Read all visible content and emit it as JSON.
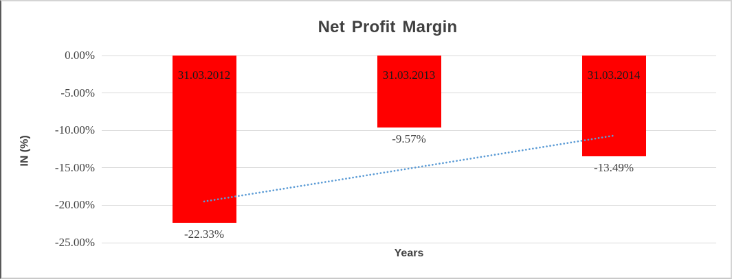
{
  "chart_data": {
    "type": "bar",
    "title": "Net Profit Margin",
    "xlabel": "Years",
    "ylabel": "IN (%)",
    "categories": [
      "31.03.2012",
      "31.03.2013",
      "31.03.2014"
    ],
    "values": [
      -22.33,
      -9.57,
      -13.49
    ],
    "data_labels": [
      "-22.33%",
      "-9.57%",
      "-13.49%"
    ],
    "yticks": [
      {
        "label": "0.00%",
        "value": 0
      },
      {
        "label": "-5.00%",
        "value": -5
      },
      {
        "label": "-10.00%",
        "value": -10
      },
      {
        "label": "-15.00%",
        "value": -15
      },
      {
        "label": "-20.00%",
        "value": -20
      },
      {
        "label": "-25.00%",
        "value": -25
      }
    ],
    "ylim": [
      -25,
      0
    ],
    "grid": true,
    "legend": false,
    "bar_color": "#FF0000",
    "gridline_color": "#D9D9D9",
    "text_color": "#404040",
    "trendline": {
      "type": "linear",
      "style": "dotted",
      "color": "#5B9BD5",
      "start_value": -19.5,
      "end_value": -10.7
    }
  }
}
